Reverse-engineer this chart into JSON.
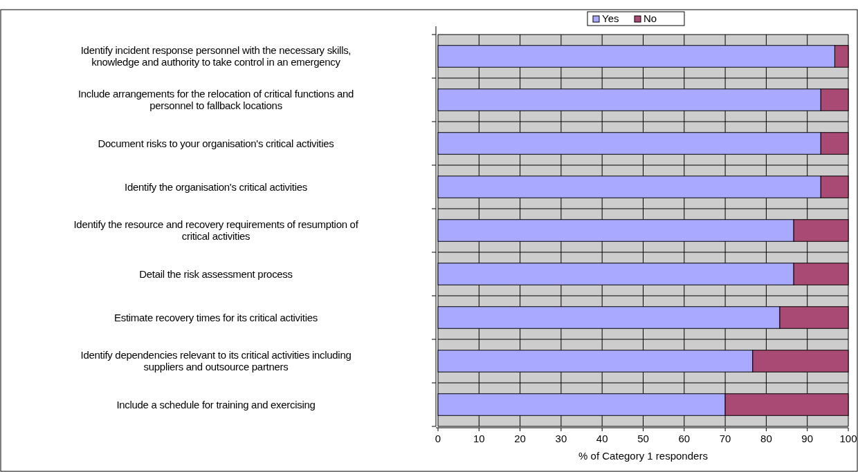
{
  "chart_data": {
    "type": "bar",
    "orientation": "horizontal",
    "stacked": true,
    "categories": [
      "Identify incident response personnel with the necessary skills, knowledge and authority to take control in an emergency",
      "Include arrangements for the relocation of critical functions and personnel to fallback locations",
      "Document risks to your organisation's critical activities",
      "Identify the organisation's critical activities",
      "Identify the resource and recovery requirements of resumption of critical activities",
      "Detail the risk assessment process",
      "Estimate recovery times for its critical activities",
      "Identify dependencies relevant to its critical activities including suppliers and outsource partners",
      "Include a schedule for training and exercising"
    ],
    "series": [
      {
        "name": "Yes",
        "color": "#a9aaff",
        "values": [
          96.7,
          93.3,
          93.3,
          93.3,
          86.7,
          86.7,
          83.3,
          76.7,
          70.0
        ]
      },
      {
        "name": "No",
        "color": "#a84a74",
        "values": [
          3.3,
          6.7,
          6.7,
          6.7,
          13.3,
          13.3,
          16.7,
          23.3,
          30.0
        ]
      }
    ],
    "xlim": [
      0,
      100
    ],
    "xticks": [
      0,
      10,
      20,
      30,
      40,
      50,
      60,
      70,
      80,
      90,
      100
    ],
    "xlabel": "% of Category 1 responders",
    "grid": true,
    "legend": "top right"
  }
}
